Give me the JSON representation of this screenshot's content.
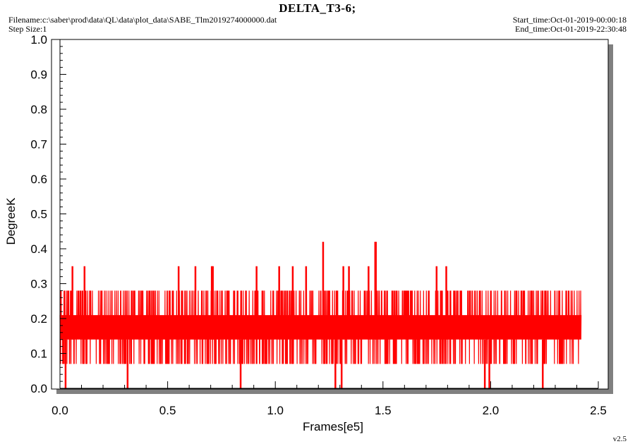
{
  "header": {
    "title": "DELTA_T3-6;",
    "filename": "Filename:c:\\saber\\prod\\data\\QL\\data\\plot_data\\SABE_Tlm2019274000000.dat",
    "step_size": "Step Size:1",
    "start_time": "Start_time:Oct-01-2019-00:00:18",
    "end_time": "End_time:Oct-01-2019-22:30:48"
  },
  "version": "v2.5",
  "chart_data": {
    "type": "line",
    "title": "DELTA_T3-6;",
    "xlabel": "Frames[e5]",
    "ylabel": "DegreeK",
    "xlim": [
      0,
      2.5
    ],
    "ylim": [
      0,
      1.0
    ],
    "x_ticks": [
      "0.0",
      "0.5",
      "1.0",
      "1.5",
      "2.0",
      "2.5"
    ],
    "y_ticks": [
      "0.0",
      "0.1",
      "0.2",
      "0.3",
      "0.4",
      "0.5",
      "0.6",
      "0.7",
      "0.8",
      "0.9",
      "1.0"
    ],
    "grid": false,
    "series": [
      {
        "color": "#ff0000",
        "x_range": [
          0,
          2.42
        ],
        "levels": [
          0.07,
          0.14,
          0.21,
          0.28
        ],
        "band_low": 0.07,
        "band_high": 0.28,
        "dense_low": 0.14,
        "dense_high": 0.21,
        "spikes_high": [
          {
            "x": 0.058,
            "y": 0.35
          },
          {
            "x": 0.114,
            "y": 0.35
          },
          {
            "x": 0.551,
            "y": 0.35
          },
          {
            "x": 0.629,
            "y": 0.35
          },
          {
            "x": 0.705,
            "y": 0.35
          },
          {
            "x": 0.71,
            "y": 0.35
          },
          {
            "x": 0.913,
            "y": 0.35
          },
          {
            "x": 1.018,
            "y": 0.35
          },
          {
            "x": 1.081,
            "y": 0.35
          },
          {
            "x": 1.143,
            "y": 0.35
          },
          {
            "x": 1.222,
            "y": 0.42
          },
          {
            "x": 1.316,
            "y": 0.35
          },
          {
            "x": 1.342,
            "y": 0.35
          },
          {
            "x": 1.433,
            "y": 0.35
          },
          {
            "x": 1.464,
            "y": 0.42
          },
          {
            "x": 1.467,
            "y": 0.42
          },
          {
            "x": 1.749,
            "y": 0.35
          },
          {
            "x": 1.794,
            "y": 0.35
          }
        ],
        "spikes_low": [
          {
            "x": 0.026,
            "y": 0.0
          },
          {
            "x": 0.314,
            "y": 0.0
          },
          {
            "x": 0.839,
            "y": 0.0
          },
          {
            "x": 1.279,
            "y": 0.0
          },
          {
            "x": 1.308,
            "y": 0.0
          },
          {
            "x": 1.973,
            "y": 0.0
          },
          {
            "x": 1.994,
            "y": 0.0
          },
          {
            "x": 2.242,
            "y": 0.0
          }
        ]
      }
    ]
  }
}
